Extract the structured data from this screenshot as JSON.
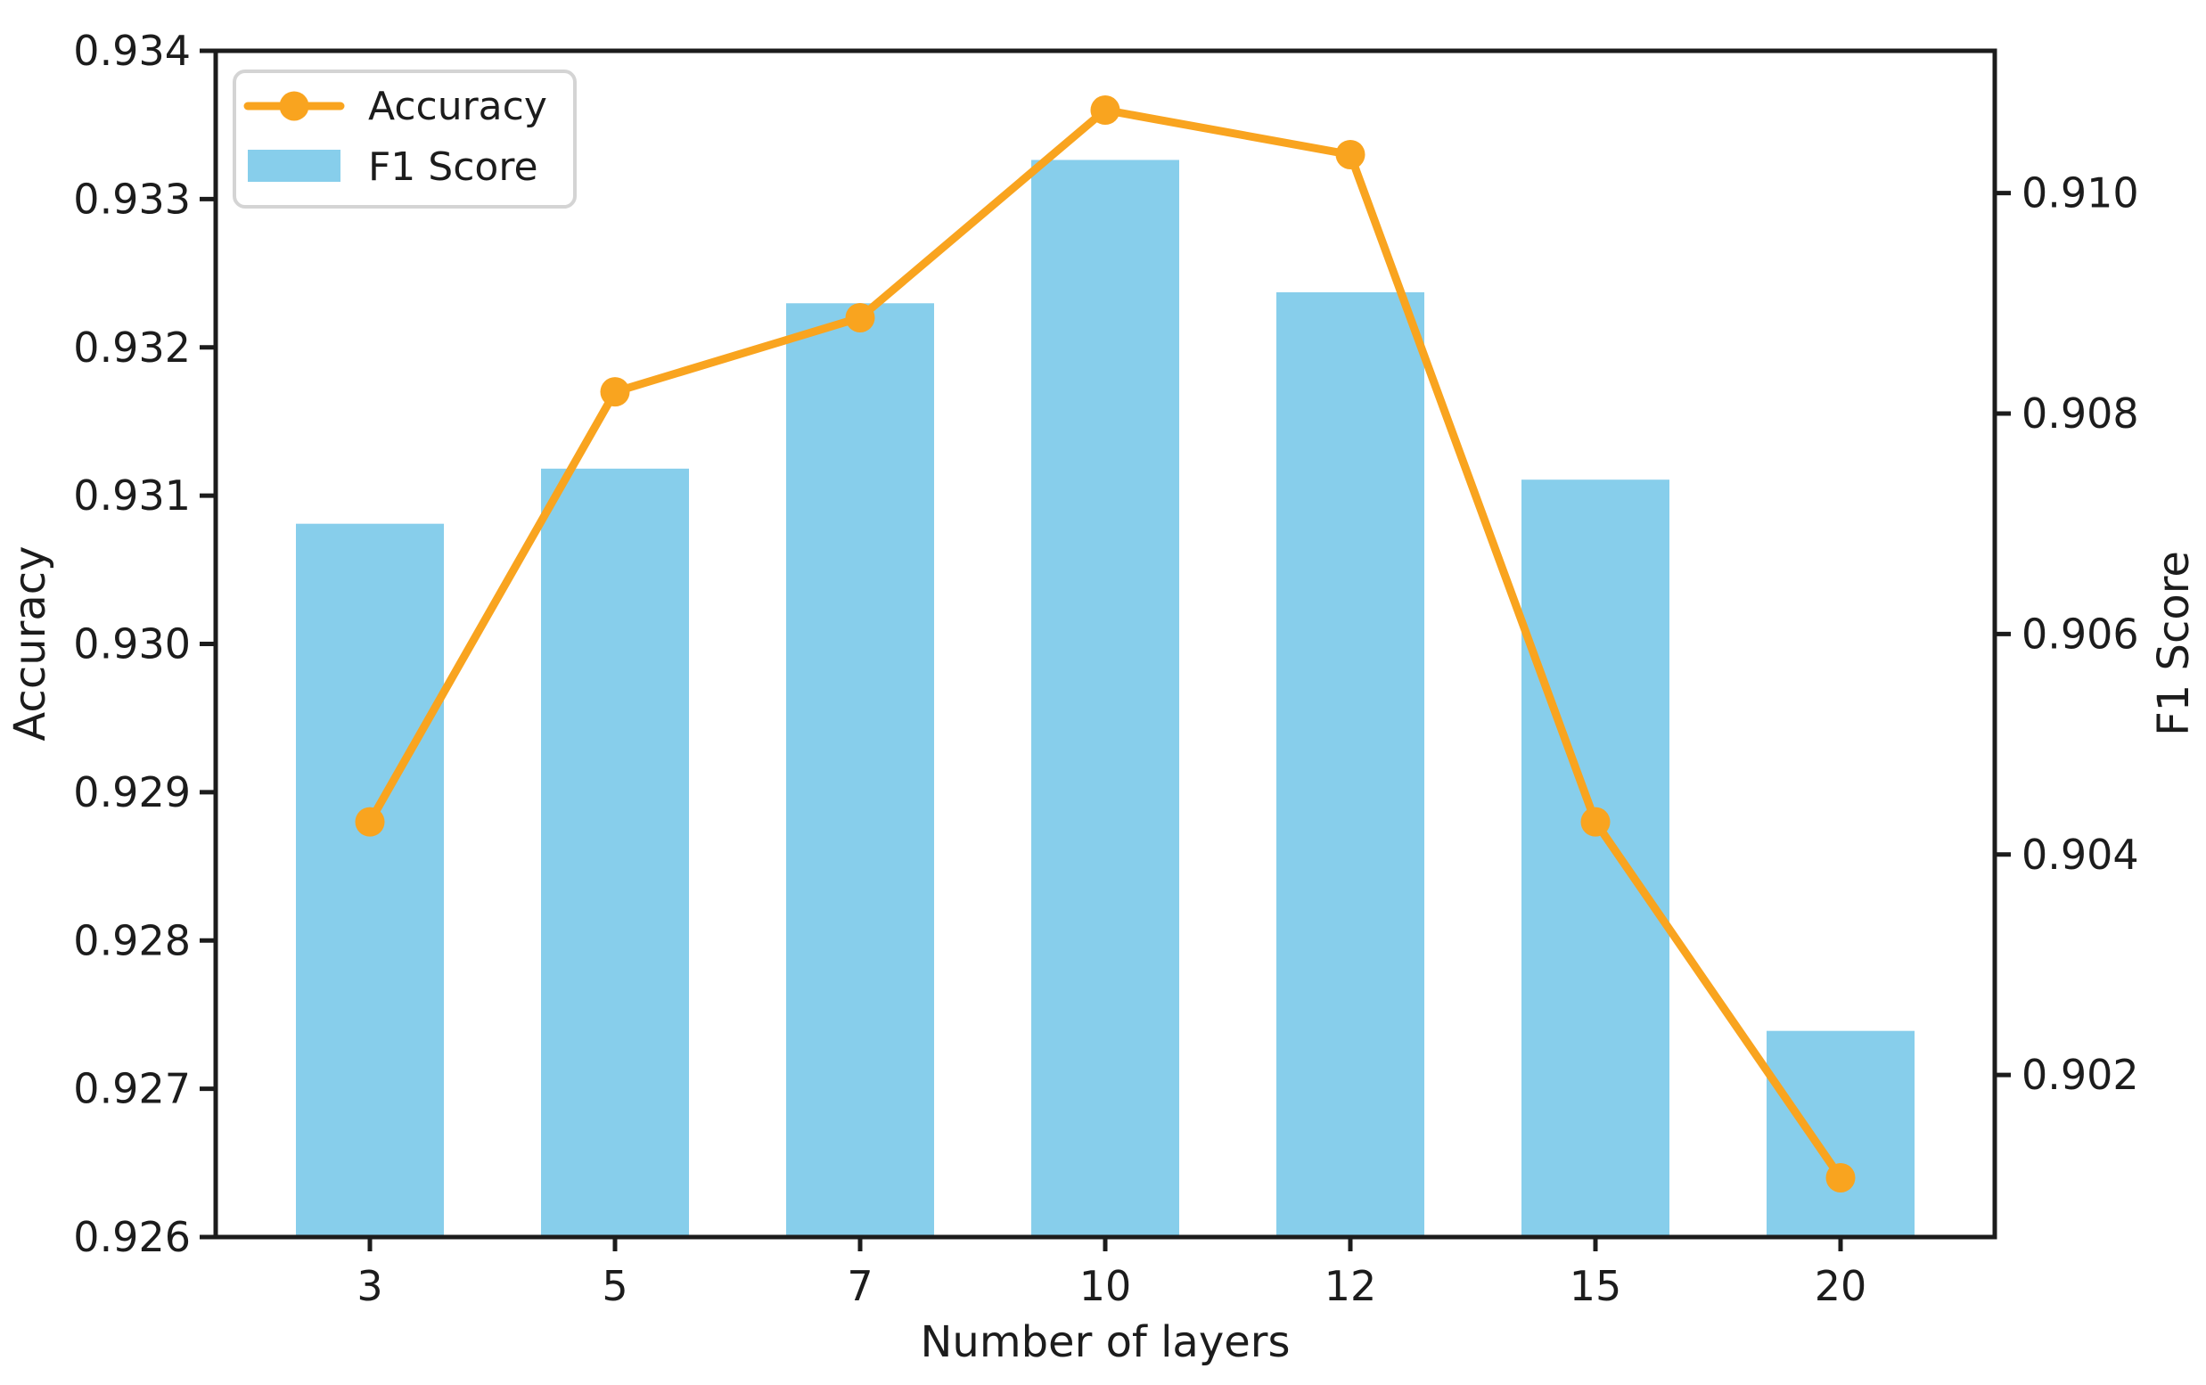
{
  "figure": {
    "background": "#ffffff",
    "axis_color": "#1c1c1c"
  },
  "chart_data": {
    "type": "combo_bar_line_dual_axis",
    "categories": [
      "3",
      "5",
      "7",
      "10",
      "12",
      "15",
      "20"
    ],
    "xlabel": "Number of layers",
    "series": [
      {
        "name": "Accuracy",
        "type": "line",
        "axis": "left",
        "color": "#F9A41F",
        "marker": "circle",
        "values": [
          0.9288,
          0.9317,
          0.9322,
          0.9336,
          0.9333,
          0.9288,
          0.9264
        ]
      },
      {
        "name": "F1 Score",
        "type": "bar",
        "axis": "right",
        "color": "#87CEEB",
        "values": [
          0.907,
          0.9075,
          0.909,
          0.9103,
          0.9091,
          0.9074,
          0.9024
        ]
      }
    ],
    "left_axis": {
      "label": "Accuracy",
      "min": 0.926,
      "max": 0.934,
      "tick_values": [
        0.926,
        0.927,
        0.928,
        0.929,
        0.93,
        0.931,
        0.932,
        0.933,
        0.934
      ],
      "tick_labels": [
        "0.926",
        "0.927",
        "0.928",
        "0.929",
        "0.930",
        "0.931",
        "0.932",
        "0.933",
        "0.934"
      ]
    },
    "right_axis": {
      "label": "F1 Score",
      "min": 0.90053,
      "max": 0.91129,
      "tick_values": [
        0.902,
        0.904,
        0.906,
        0.908,
        0.91
      ],
      "tick_labels": [
        "0.902",
        "0.904",
        "0.906",
        "0.908",
        "0.910"
      ]
    },
    "legend": {
      "position": "upper-left",
      "entries": [
        "Accuracy",
        "F1 Score"
      ]
    },
    "grid": false
  }
}
